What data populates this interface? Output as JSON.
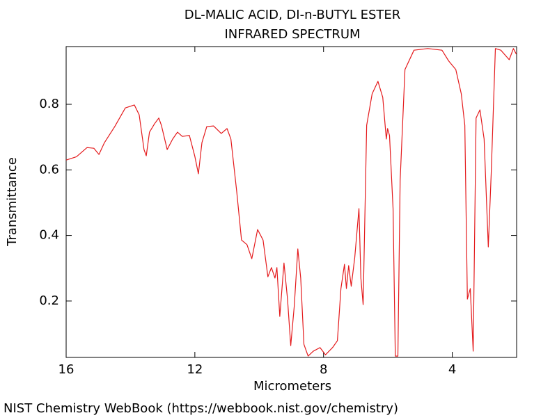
{
  "chart_data": {
    "type": "line",
    "title": "DL-MALIC ACID, DI-n-BUTYL ESTER",
    "subtitle": "INFRARED SPECTRUM",
    "x_label": "Micrometers",
    "y_label": "Transmittance",
    "xlim": [
      16,
      2
    ],
    "ylim": [
      0.028,
      0.976
    ],
    "xticks": [
      16,
      12,
      8,
      4
    ],
    "yticks": [
      0.2,
      0.4,
      0.6,
      0.8
    ],
    "series": [
      {
        "name": "DL-MALIC ACID, DI-n-BUTYL ESTER",
        "color": "#e41a1c",
        "x": [
          16,
          15.68,
          15.35,
          15.14,
          14.98,
          14.81,
          14.49,
          14.16,
          13.88,
          13.73,
          13.58,
          13.51,
          13.41,
          13.25,
          13.12,
          13.04,
          12.86,
          12.69,
          12.54,
          12.39,
          12.17,
          12.0,
          11.89,
          11.78,
          11.63,
          11.42,
          11.18,
          11.0,
          10.88,
          10.7,
          10.55,
          10.38,
          10.23,
          10.05,
          9.88,
          9.73,
          9.62,
          9.51,
          9.45,
          9.36,
          9.23,
          9.12,
          9.02,
          8.91,
          8.8,
          8.71,
          8.61,
          8.48,
          8.32,
          8.11,
          7.94,
          7.72,
          7.57,
          7.46,
          7.35,
          7.29,
          7.22,
          7.14,
          7.03,
          6.9,
          6.84,
          6.77,
          6.66,
          6.49,
          6.31,
          6.16,
          6.05,
          6.01,
          5.95,
          5.84,
          5.77,
          5.69,
          5.62,
          5.47,
          5.19,
          4.76,
          4.32,
          4.11,
          3.89,
          3.72,
          3.61,
          3.53,
          3.44,
          3.35,
          3.26,
          3.14,
          3.01,
          2.88,
          2.79,
          2.66,
          2.49,
          2.23,
          2.1,
          2.01
        ],
        "values": [
          0.63,
          0.64,
          0.668,
          0.666,
          0.647,
          0.683,
          0.732,
          0.789,
          0.798,
          0.768,
          0.662,
          0.643,
          0.715,
          0.741,
          0.758,
          0.736,
          0.662,
          0.694,
          0.715,
          0.702,
          0.705,
          0.641,
          0.588,
          0.683,
          0.732,
          0.734,
          0.711,
          0.726,
          0.694,
          0.535,
          0.386,
          0.372,
          0.329,
          0.418,
          0.386,
          0.274,
          0.302,
          0.27,
          0.302,
          0.153,
          0.316,
          0.206,
          0.064,
          0.185,
          0.359,
          0.27,
          0.068,
          0.032,
          0.047,
          0.058,
          0.036,
          0.058,
          0.079,
          0.238,
          0.312,
          0.238,
          0.308,
          0.245,
          0.333,
          0.482,
          0.27,
          0.189,
          0.736,
          0.832,
          0.87,
          0.821,
          0.694,
          0.726,
          0.705,
          0.482,
          0.032,
          0.032,
          0.567,
          0.906,
          0.965,
          0.97,
          0.965,
          0.932,
          0.906,
          0.832,
          0.736,
          0.206,
          0.238,
          0.047,
          0.758,
          0.783,
          0.694,
          0.365,
          0.588,
          0.97,
          0.965,
          0.936,
          0.97,
          0.953
        ]
      }
    ]
  },
  "footer": "NIST Chemistry WebBook (https://webbook.nist.gov/chemistry)"
}
